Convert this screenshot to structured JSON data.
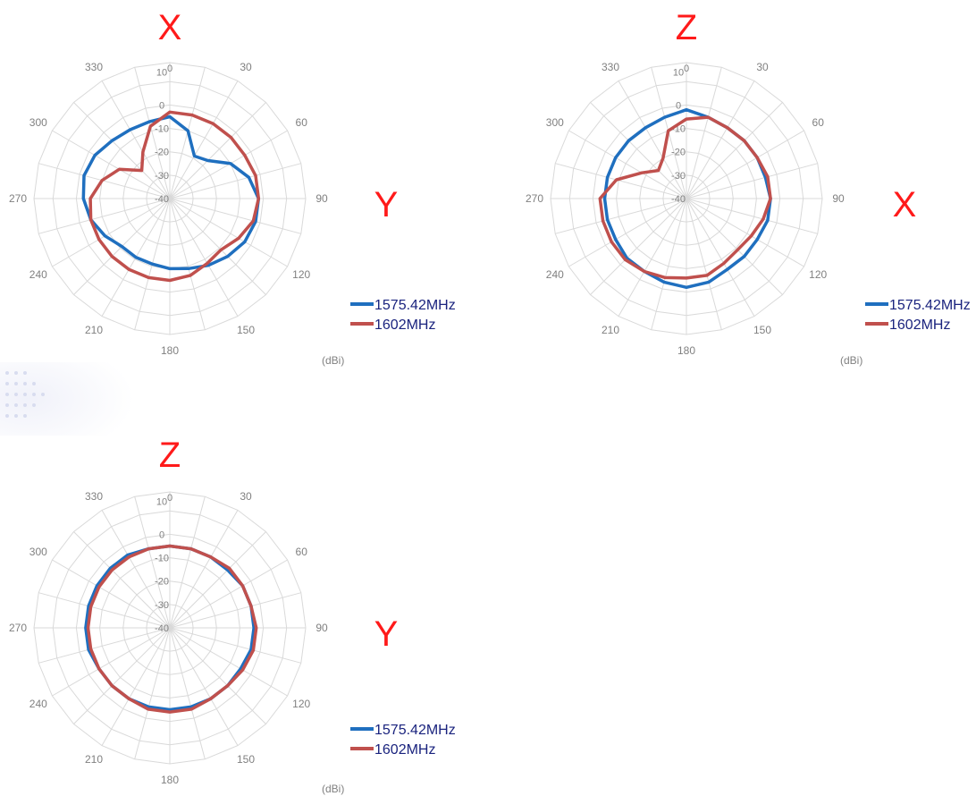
{
  "colors": {
    "series_blue": "#1f6fbf",
    "series_red": "#c0504d",
    "grid": "#d9d9d9",
    "tick_text": "#808080",
    "axis_letter": "#ff1a1a",
    "legend_text": "#1a237e"
  },
  "chart_data": [
    {
      "type": "polar",
      "top_letter": "X",
      "side_letter": "Y",
      "unit_label": "(dBi)",
      "angle_ticks": [
        "0",
        "30",
        "60",
        "90",
        "120",
        "150",
        "180",
        "210",
        "240",
        "270",
        "300",
        "330"
      ],
      "radial_ticks": [
        "10",
        "0",
        "-10",
        "-20",
        "-30",
        "-40"
      ],
      "rlim": [
        -40,
        10
      ],
      "series": [
        {
          "name": "1575.42MHz",
          "angles": [
            0,
            15,
            30,
            45,
            60,
            75,
            90,
            105,
            120,
            135,
            150,
            165,
            180,
            195,
            210,
            225,
            240,
            255,
            270,
            285,
            300,
            315,
            330,
            345
          ],
          "values": [
            -5,
            -10,
            -19,
            -17,
            -10,
            -5,
            -2,
            -2,
            -3,
            -5,
            -7,
            -9,
            -10,
            -11,
            -11,
            -11,
            -8,
            -5,
            -3,
            -2,
            -3,
            -5,
            -6,
            -6
          ]
        },
        {
          "name": "1602MHz",
          "angles": [
            0,
            15,
            30,
            45,
            60,
            75,
            90,
            105,
            120,
            135,
            150,
            165,
            180,
            195,
            210,
            225,
            240,
            255,
            270,
            285,
            300,
            315,
            330,
            345
          ],
          "values": [
            -3,
            -3,
            -3,
            -3,
            -3,
            -2,
            -2,
            -3,
            -6,
            -9,
            -8,
            -6,
            -5,
            -5,
            -5,
            -5,
            -5,
            -5,
            -6,
            -10,
            -15,
            -23,
            -17,
            -8
          ]
        }
      ]
    },
    {
      "type": "polar",
      "top_letter": "Z",
      "side_letter": "X",
      "unit_label": "(dBi)",
      "angle_ticks": [
        "0",
        "30",
        "60",
        "90",
        "120",
        "150",
        "180",
        "210",
        "240",
        "270",
        "300",
        "330"
      ],
      "radial_ticks": [
        "10",
        "0",
        "-10",
        "-20",
        "-30",
        "-40"
      ],
      "rlim": [
        -40,
        10
      ],
      "series": [
        {
          "name": "1575.42MHz",
          "angles": [
            0,
            15,
            30,
            45,
            60,
            75,
            90,
            105,
            120,
            135,
            150,
            165,
            180,
            195,
            210,
            225,
            240,
            255,
            270,
            285,
            300,
            315,
            330,
            345
          ],
          "values": [
            -2,
            -4,
            -5,
            -5,
            -5,
            -5,
            -4,
            -4,
            -5,
            -5,
            -5,
            -3,
            -2,
            -3,
            -4,
            -4,
            -5,
            -5,
            -5,
            -5,
            -5,
            -5,
            -5,
            -4
          ]
        },
        {
          "name": "1602MHz",
          "angles": [
            0,
            15,
            30,
            45,
            60,
            75,
            90,
            105,
            120,
            135,
            150,
            165,
            180,
            195,
            210,
            225,
            240,
            255,
            270,
            285,
            300,
            315,
            330,
            345
          ],
          "values": [
            -6,
            -4,
            -5,
            -5,
            -5,
            -4,
            -4,
            -6,
            -8,
            -9,
            -8,
            -6,
            -6,
            -5,
            -4,
            -3,
            -3,
            -3,
            -3,
            -9,
            -18,
            -23,
            -20,
            -10
          ]
        }
      ]
    },
    {
      "type": "polar",
      "top_letter": "Z",
      "side_letter": "Y",
      "unit_label": "(dBi)",
      "angle_ticks": [
        "0",
        "30",
        "60",
        "90",
        "120",
        "150",
        "180",
        "210",
        "240",
        "270",
        "300",
        "330"
      ],
      "radial_ticks": [
        "10",
        "0",
        "-10",
        "-20",
        "-30",
        "-40"
      ],
      "rlim": [
        -40,
        10
      ],
      "series": [
        {
          "name": "1575.42MHz",
          "angles": [
            0,
            15,
            30,
            45,
            60,
            75,
            90,
            105,
            120,
            135,
            150,
            165,
            180,
            195,
            210,
            225,
            240,
            255,
            270,
            285,
            300,
            315,
            330,
            345
          ],
          "values": [
            -5,
            -5,
            -5,
            -5,
            -4,
            -4,
            -4,
            -4,
            -5,
            -5,
            -5,
            -5,
            -5,
            -5,
            -5,
            -5,
            -5,
            -4,
            -4,
            -4,
            -4,
            -4,
            -4,
            -5
          ]
        },
        {
          "name": "1602MHz",
          "angles": [
            0,
            15,
            30,
            45,
            60,
            75,
            90,
            105,
            120,
            135,
            150,
            165,
            180,
            195,
            210,
            225,
            240,
            255,
            270,
            285,
            300,
            315,
            330,
            345
          ],
          "values": [
            -5,
            -5,
            -5,
            -4,
            -4,
            -4,
            -3,
            -3,
            -4,
            -5,
            -5,
            -4,
            -4,
            -4,
            -5,
            -5,
            -5,
            -5,
            -5,
            -5,
            -5,
            -5,
            -5,
            -5
          ]
        }
      ]
    }
  ]
}
